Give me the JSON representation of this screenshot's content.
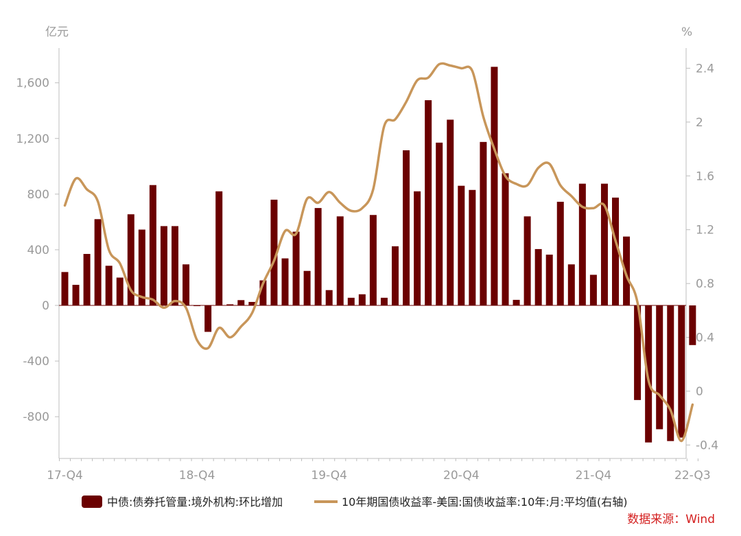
{
  "chart_data": {
    "type": "bar+line",
    "left_axis_unit": "亿元",
    "right_axis_unit": "%",
    "left_axis": {
      "min": -1100,
      "max": 1850,
      "ticks": [
        -800,
        -400,
        0,
        400,
        800,
        1200,
        1600
      ],
      "tick_labels": [
        "-800",
        "-400",
        "0",
        "400",
        "800",
        "1,200",
        "1,600"
      ]
    },
    "right_axis": {
      "min": -0.5,
      "max": 2.55,
      "ticks": [
        -0.4,
        0,
        0.4,
        0.8,
        1.2,
        1.6,
        2,
        2.4
      ],
      "tick_labels": [
        "-0.4",
        "0",
        "0.4",
        "0.8",
        "1.2",
        "1.6",
        "2",
        "2.4"
      ]
    },
    "x_tick_labels": [
      {
        "label": "17-Q4",
        "month_index": 0
      },
      {
        "label": "18-Q4",
        "month_index": 12
      },
      {
        "label": "19-Q4",
        "month_index": 24
      },
      {
        "label": "20-Q4",
        "month_index": 36
      },
      {
        "label": "21-Q4",
        "month_index": 48
      },
      {
        "label": "22-Q3",
        "month_index": 57
      }
    ],
    "series": [
      {
        "name": "中债:债券托管量:境外机构:环比增加",
        "type": "bar",
        "axis": "left",
        "color": "#6b0000",
        "values": [
          240,
          148,
          370,
          620,
          285,
          200,
          655,
          545,
          865,
          570,
          570,
          295,
          -5,
          -190,
          820,
          8,
          38,
          25,
          180,
          760,
          338,
          530,
          248,
          700,
          110,
          640,
          55,
          80,
          650,
          55,
          425,
          1115,
          820,
          1475,
          1170,
          1335,
          860,
          830,
          1175,
          1715,
          950,
          40,
          640,
          405,
          365,
          745,
          295,
          875,
          220,
          875,
          775,
          495,
          -680,
          -985,
          -890,
          -975,
          -950,
          -285
        ]
      },
      {
        "name": "10年期国债收益率-美国:国债收益率:10年:月:平均值(右轴)",
        "type": "line",
        "axis": "right",
        "color": "#c8965a",
        "values": [
          1.38,
          1.58,
          1.5,
          1.41,
          1.05,
          0.95,
          0.75,
          0.7,
          0.68,
          0.62,
          0.67,
          0.62,
          0.38,
          0.32,
          0.47,
          0.4,
          0.48,
          0.58,
          0.8,
          0.97,
          1.19,
          1.17,
          1.43,
          1.4,
          1.48,
          1.4,
          1.34,
          1.36,
          1.5,
          1.97,
          2.02,
          2.15,
          2.31,
          2.33,
          2.43,
          2.42,
          2.4,
          2.38,
          2.04,
          1.8,
          1.6,
          1.54,
          1.53,
          1.66,
          1.69,
          1.53,
          1.45,
          1.37,
          1.36,
          1.38,
          1.12,
          0.86,
          0.66,
          0.08,
          -0.03,
          -0.14,
          -0.37,
          -0.1
        ]
      }
    ],
    "legend_position": "bottom",
    "grid": false
  },
  "source": "数据来源：Wind"
}
